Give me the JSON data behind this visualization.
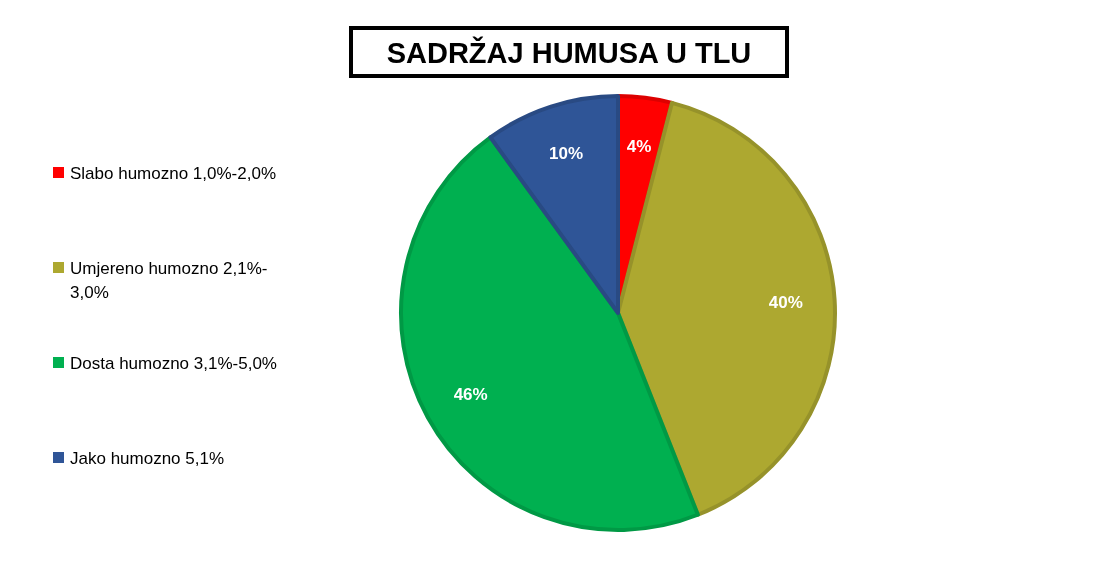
{
  "chart_data": {
    "type": "pie",
    "title": "SADRŽAJ HUMUSA U TLU",
    "categories": [
      "Slabo humozno 1,0%-2,0%",
      "Umjereno humozno 2,1%-3,0%",
      "Dosta humozno 3,1%-5,0%",
      "Jako humozno 5,1%"
    ],
    "values": [
      4,
      40,
      46,
      10
    ],
    "colors": [
      "#ff0000",
      "#ada830",
      "#00b050",
      "#2f5597"
    ],
    "value_labels": [
      "4%",
      "40%",
      "46%",
      "10%"
    ],
    "legend": "left"
  }
}
